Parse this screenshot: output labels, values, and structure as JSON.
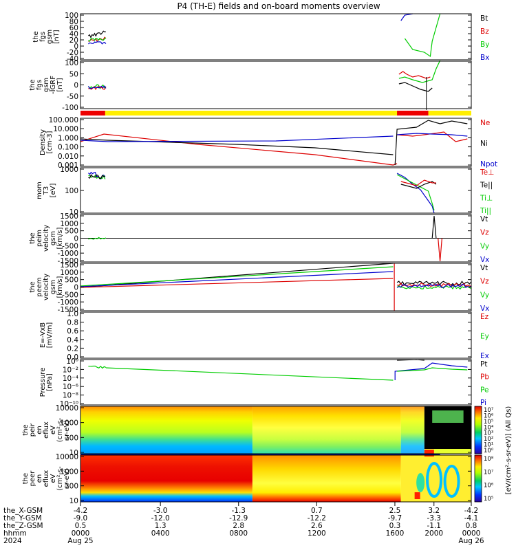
{
  "title": "P4 (TH-E) fields and on-board moments overview",
  "chart_data": {
    "type": "line",
    "x_ticks": {
      "x_gsm": [
        "-4.2",
        "-3.0",
        "-1.3",
        "0.7",
        "2.5",
        "3.2",
        "-4.2"
      ],
      "y_gsm": [
        "-9.0",
        "-12.0",
        "-12.9",
        "-12.2",
        "-9.7",
        "-3.3",
        "-4.1"
      ],
      "z_gsm": [
        "0.5",
        "1.3",
        "2.8",
        "2.6",
        "0.3",
        "-1.1",
        "0.8"
      ],
      "hhmm": [
        "0000",
        "0400",
        "0800",
        "1200",
        "1600",
        "2000",
        "0000"
      ],
      "dates": [
        "Aug 25",
        "",
        "",
        "",
        "",
        "",
        "Aug 26"
      ]
    },
    "x_row_labels": [
      "the_X-GSM",
      "the_Y-GSM",
      "the_Z-GSM",
      "hhmm",
      "2024"
    ],
    "panels": [
      {
        "id": "fgs",
        "ylabel": [
          "the",
          "fgs",
          "gsm",
          "[nT]"
        ],
        "yticks": [
          "100",
          "80",
          "60",
          "40",
          "20",
          "0",
          "-20",
          "-40"
        ],
        "legend": [
          "Bt",
          "Bz",
          "By",
          "Bx"
        ]
      },
      {
        "id": "fgs-dip",
        "ylabel": [
          "the",
          "fgs",
          "gsm",
          "-IGRF",
          "[nT]"
        ],
        "yticks": [
          "100",
          "50",
          "0",
          "-50",
          "-100"
        ],
        "legend": []
      },
      {
        "id": "density",
        "ylabel": [
          "Density",
          "[cm-3]"
        ],
        "yticks": [
          "100.000",
          "10.000",
          "1.000",
          "0.100",
          "0.010",
          "0.001"
        ],
        "legend": [
          "Ne",
          "Ni",
          "Npot"
        ]
      },
      {
        "id": "temperature",
        "ylabel": [
          "mom",
          "T3",
          "[eV]"
        ],
        "yticks": [
          "1000",
          "100",
          "10"
        ],
        "legend": [
          "Te⊥",
          "Te||",
          "Ti⊥",
          "Ti||"
        ]
      },
      {
        "id": "peim-velocity",
        "ylabel": [
          "the",
          "peim",
          "velocity",
          "gsm",
          "[km/s]"
        ],
        "yticks": [
          "1500",
          "1000",
          "500",
          "0",
          "-500",
          "-1000",
          "-1500"
        ],
        "legend": [
          "Vt",
          "Vz",
          "Vy",
          "Vx"
        ]
      },
      {
        "id": "peem-velocity",
        "ylabel": [
          "the",
          "peem",
          "velocity",
          "gsm",
          "[km/s]"
        ],
        "yticks": [
          "1500",
          "1000",
          "500",
          "0",
          "-500",
          "-1000",
          "-1500"
        ],
        "legend": [
          "Vt",
          "Vz",
          "Vy",
          "Vx"
        ]
      },
      {
        "id": "efield",
        "ylabel": [
          "E=-VxB",
          "[mV/m]"
        ],
        "yticks": [
          "1.0",
          "0.8",
          "0.6",
          "0.4",
          "0.2",
          "0.0"
        ],
        "legend": [
          "Ez",
          "Ey",
          "Ex"
        ]
      },
      {
        "id": "pressure",
        "ylabel": [
          "Pressure",
          "[nPa]"
        ],
        "yticks": [
          "10^0",
          "10^-2",
          "10^-4",
          "10^-6",
          "10^-8",
          "10^-10"
        ],
        "legend": [
          "Pt",
          "Pb",
          "Pe",
          "Pi"
        ]
      },
      {
        "id": "peir-spec",
        "ylabel": [
          "the",
          "peir",
          "en",
          "eflux",
          "eV",
          "(cm^2-s-",
          "sr-eV)"
        ],
        "yticks": [
          "10000",
          "1000",
          "100",
          "10"
        ],
        "colorbar": [
          "10^7",
          "10^6",
          "10^5",
          "10^4",
          "10^3",
          "10^2",
          "10^1",
          "10^0"
        ]
      },
      {
        "id": "peer-spec",
        "ylabel": [
          "the",
          "peer",
          "en",
          "eflux",
          "eV",
          "(cm^2-s-",
          "sr-eV)"
        ],
        "yticks": [
          "10000",
          "1000",
          "100",
          "10"
        ],
        "colorbar": [
          "10^8",
          "10^7",
          "10^6",
          "10^5"
        ]
      }
    ],
    "colorbar_unit": "[eV/(cm^2-s-sr-eV)] (All Qs)",
    "series_colors": {
      "t": "#000000",
      "z": "#dd0000",
      "y": "#00cc00",
      "x": "#0000cc",
      "bar_red": "#ee0000",
      "bar_yellow": "#ffee00"
    }
  }
}
